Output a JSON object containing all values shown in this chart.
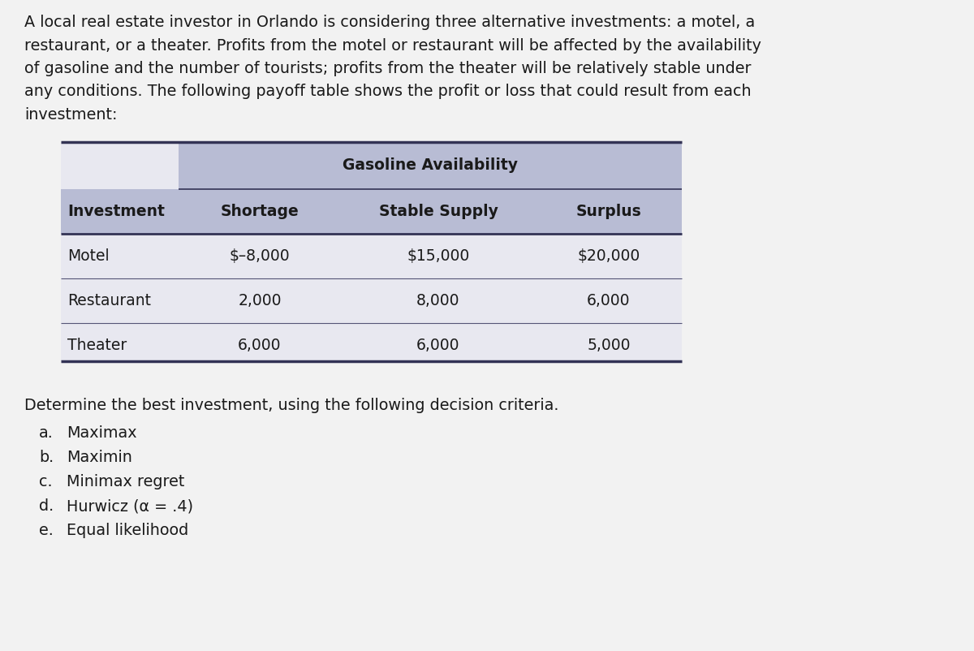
{
  "background_color": "#f2f2f2",
  "page_color": "#ffffff",
  "intro_text_lines": [
    "A local real estate investor in Orlando is considering three alternative investments: a motel, a",
    "restaurant, or a theater. Profits from the motel or restaurant will be affected by the availability",
    "of gasoline and the number of tourists; profits from the theater will be relatively stable under",
    "any conditions. The following payoff table shows the profit or loss that could result from each",
    "investment:"
  ],
  "table_header_group": "Gasoline Availability",
  "table_col_headers": [
    "Investment",
    "Shortage",
    "Stable Supply",
    "Surplus"
  ],
  "table_rows": [
    [
      "Motel",
      "$–8,000",
      "$15,000",
      "$20,000"
    ],
    [
      "Restaurant",
      "2,000",
      "8,000",
      "6,000"
    ],
    [
      "Theater",
      "6,000",
      "6,000",
      "5,000"
    ]
  ],
  "table_header_bg": "#b8bcd4",
  "table_data_bg": "#e8e8f0",
  "table_border_color": "#444466",
  "footer_text": "Determine the best investment, using the following decision criteria.",
  "criteria_labels": [
    "a.",
    "b.",
    "c.",
    "d.",
    "e."
  ],
  "criteria_items": [
    "Maximax",
    "Maximin",
    "Minimax regret",
    "Hurwicz (α = .4)",
    "Equal likelihood"
  ],
  "font_size_intro": 13.8,
  "font_size_table_header": 13.5,
  "font_size_table_data": 13.5,
  "font_size_footer": 13.8,
  "font_size_criteria": 13.8
}
